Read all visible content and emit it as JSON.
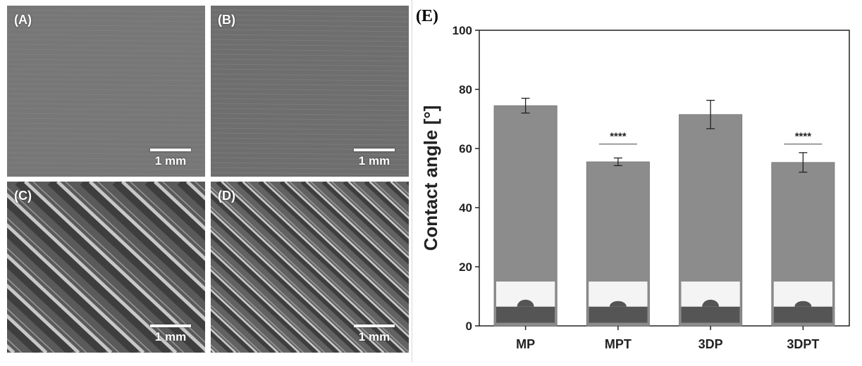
{
  "panels": [
    {
      "label": "(A)",
      "scale": "1 mm",
      "texture": "smooth"
    },
    {
      "label": "(B)",
      "scale": "1 mm",
      "texture": "smooth"
    },
    {
      "label": "(C)",
      "scale": "1 mm",
      "texture": "ridged"
    },
    {
      "label": "(D)",
      "scale": "1 mm",
      "texture": "ridged-fine"
    }
  ],
  "chart_label": "(E)",
  "chart_data": {
    "type": "bar",
    "categories": [
      "MP",
      "MPT",
      "3DP",
      "3DPT"
    ],
    "values": [
      74.5,
      55.5,
      71.5,
      55.3
    ],
    "errors": [
      2.5,
      1.3,
      4.8,
      3.3
    ],
    "significance": [
      "",
      "****",
      "",
      "****"
    ],
    "ylabel": "Contact angle [°]",
    "ylim": [
      0,
      100
    ],
    "yticks": [
      0,
      20,
      40,
      60,
      80,
      100
    ],
    "bar_color": "#8c8c8c",
    "grid": false
  }
}
